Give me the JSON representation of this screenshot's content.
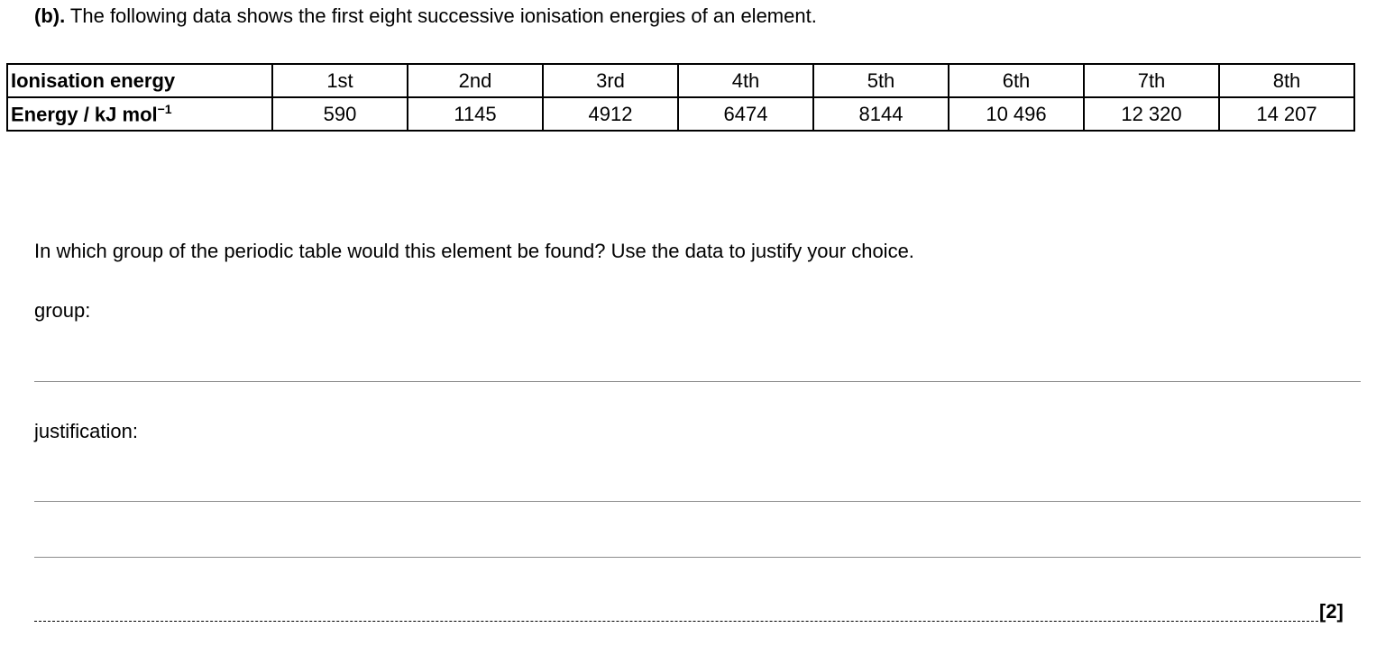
{
  "intro": {
    "part_label": "(b).",
    "text": "The following data shows the first eight successive ionisation energies of an element."
  },
  "table": {
    "row1_header": "Ionisation energy",
    "row2_header_base": "Energy / kJ mol",
    "row2_header_sup": "−1",
    "orders": [
      "1st",
      "2nd",
      "3rd",
      "4th",
      "5th",
      "6th",
      "7th",
      "8th"
    ],
    "energies": [
      "590",
      "1145",
      "4912",
      "6474",
      "8144",
      "10 496",
      "12 320",
      "14 207"
    ]
  },
  "question": "In which group of the periodic table would this element be found? Use the data to justify your choice.",
  "group_label": "group:",
  "justification_label": "justification:",
  "marks": "[2]"
}
